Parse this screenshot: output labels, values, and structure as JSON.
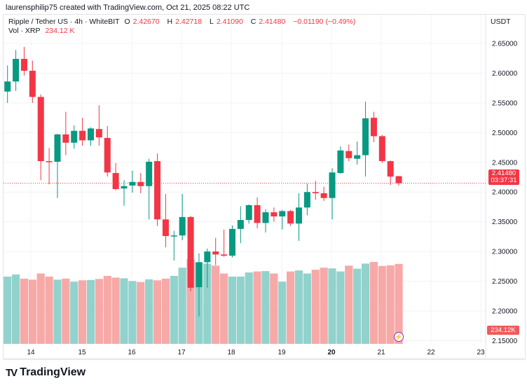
{
  "credit": "laurensphilip75 created with TradingView.com, Oct 21, 2025 08:22 UTC",
  "legend": {
    "symbol": "Ripple / Tether US · 4h · WhiteBIT",
    "open_label": "O",
    "open": "2.42670",
    "high_label": "H",
    "high": "2.42718",
    "low_label": "L",
    "low": "2.41090",
    "close_label": "C",
    "close": "2.41480",
    "change": "−0.01190 (−0.49%)",
    "vol_label": "Vol · XRP",
    "vol": "234.12 K"
  },
  "price_axis": {
    "currency": "USDT",
    "ticks": [
      "2.65000",
      "2.60000",
      "2.55000",
      "2.50000",
      "2.45000",
      "2.40000",
      "2.35000",
      "2.30000",
      "2.25000",
      "2.20000",
      "2.15000"
    ],
    "last_price": "2.41480",
    "countdown": "03:37:31",
    "volume_tag": "234.12K"
  },
  "time_axis": {
    "ticks": [
      "14",
      "15",
      "16",
      "17",
      "18",
      "19",
      "20",
      "21",
      "22",
      "23"
    ],
    "bold_tick": "20"
  },
  "colors": {
    "up": "#089981",
    "down": "#f23645",
    "up_vol": "#92d2cc",
    "down_vol": "#f7a9a7",
    "grid": "#f0f3fa"
  },
  "icons": {
    "alert": "lightning-icon",
    "logo": "tradingview-logo"
  },
  "footer": {
    "brand": "TradingView"
  },
  "chart_data": {
    "type": "candlestick",
    "interval": "4h",
    "ylim": [
      2.15,
      2.67
    ],
    "candles": [
      [
        2.569,
        2.613,
        2.55,
        2.586
      ],
      [
        2.586,
        2.639,
        2.57,
        2.624
      ],
      [
        2.624,
        2.644,
        2.596,
        2.604
      ],
      [
        2.604,
        2.621,
        2.55,
        2.56
      ],
      [
        2.56,
        2.564,
        2.42,
        2.452
      ],
      [
        2.452,
        2.474,
        2.413,
        2.451
      ],
      [
        2.451,
        2.498,
        2.39,
        2.497
      ],
      [
        2.497,
        2.535,
        2.462,
        2.483
      ],
      [
        2.483,
        2.512,
        2.473,
        2.503
      ],
      [
        2.503,
        2.525,
        2.478,
        2.487
      ],
      [
        2.487,
        2.509,
        2.478,
        2.507
      ],
      [
        2.506,
        2.546,
        2.478,
        2.492
      ],
      [
        2.491,
        2.511,
        2.426,
        2.433
      ],
      [
        2.432,
        2.449,
        2.403,
        2.405
      ],
      [
        2.406,
        2.42,
        2.377,
        2.41
      ],
      [
        2.411,
        2.436,
        2.399,
        2.417
      ],
      [
        2.417,
        2.432,
        2.398,
        2.41
      ],
      [
        2.41,
        2.456,
        2.354,
        2.451
      ],
      [
        2.452,
        2.465,
        2.343,
        2.354
      ],
      [
        2.354,
        2.397,
        2.307,
        2.326
      ],
      [
        2.326,
        2.335,
        2.285,
        2.327
      ],
      [
        2.327,
        2.397,
        2.319,
        2.358
      ],
      [
        2.358,
        2.36,
        2.233,
        2.239
      ],
      [
        2.24,
        2.297,
        2.191,
        2.282
      ],
      [
        2.282,
        2.305,
        2.239,
        2.3
      ],
      [
        2.3,
        2.323,
        2.277,
        2.295
      ],
      [
        2.295,
        2.337,
        2.291,
        2.293
      ],
      [
        2.293,
        2.344,
        2.29,
        2.338
      ],
      [
        2.338,
        2.376,
        2.314,
        2.353
      ],
      [
        2.353,
        2.379,
        2.347,
        2.378
      ],
      [
        2.378,
        2.391,
        2.339,
        2.348
      ],
      [
        2.348,
        2.371,
        2.332,
        2.366
      ],
      [
        2.366,
        2.374,
        2.35,
        2.359
      ],
      [
        2.359,
        2.37,
        2.337,
        2.368
      ],
      [
        2.368,
        2.37,
        2.343,
        2.347
      ],
      [
        2.347,
        2.398,
        2.318,
        2.374
      ],
      [
        2.374,
        2.414,
        2.361,
        2.4
      ],
      [
        2.4,
        2.419,
        2.387,
        2.398
      ],
      [
        2.398,
        2.409,
        2.385,
        2.39
      ],
      [
        2.39,
        2.44,
        2.354,
        2.433
      ],
      [
        2.432,
        2.477,
        2.431,
        2.47
      ],
      [
        2.469,
        2.48,
        2.452,
        2.457
      ],
      [
        2.456,
        2.485,
        2.446,
        2.462
      ],
      [
        2.462,
        2.552,
        2.426,
        2.524
      ],
      [
        2.525,
        2.535,
        2.484,
        2.494
      ],
      [
        2.494,
        2.496,
        2.449,
        2.452
      ],
      [
        2.452,
        2.453,
        2.412,
        2.426
      ],
      [
        2.4267,
        2.42718,
        2.4109,
        2.4148
      ]
    ],
    "volume_k": [
      197,
      203,
      191,
      188,
      206,
      197,
      188,
      191,
      182,
      186,
      187,
      190,
      199,
      194,
      192,
      184,
      181,
      189,
      186,
      191,
      199,
      223,
      248,
      239,
      235,
      229,
      206,
      197,
      197,
      209,
      212,
      213,
      206,
      182,
      212,
      215,
      206,
      217,
      223,
      221,
      212,
      229,
      220,
      235,
      240,
      228,
      230,
      234.12
    ]
  }
}
